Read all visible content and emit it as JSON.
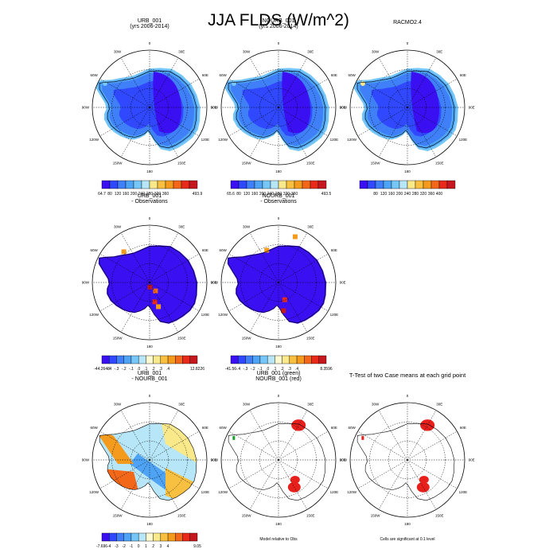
{
  "title": "JJA FLDS (W/m^2)",
  "lon_labels": [
    "0",
    "30E",
    "60E",
    "90E",
    "120E",
    "150E",
    "180",
    "150W",
    "120W",
    "90W",
    "60W",
    "30W"
  ],
  "chart_data": [
    {
      "type": "heatmap",
      "panel": "URB_001",
      "title": [
        "URB_001",
        "(yrs 2006-2014)"
      ],
      "colorbar": {
        "min_label": "64.7",
        "max_label": "493.9",
        "labels": [
          "80",
          "120",
          "160",
          "200",
          "240",
          "280",
          "320",
          "360"
        ]
      }
    },
    {
      "type": "heatmap",
      "panel": "NOURB_001",
      "title": [
        "NOURB_001",
        "(yrs 2006-2014)"
      ],
      "colorbar": {
        "min_label": "65.6",
        "max_label": "493.5",
        "labels": [
          "80",
          "120",
          "160",
          "200",
          "240",
          "280",
          "320",
          "360"
        ]
      }
    },
    {
      "type": "heatmap",
      "panel": "RACMO2.4",
      "title": [
        "RACMO2.4"
      ],
      "colorbar": {
        "min_label": "",
        "max_label": "",
        "labels": [
          "80",
          "120",
          "160",
          "200",
          "240",
          "280",
          "320",
          "360",
          "400"
        ]
      }
    },
    {
      "type": "heatmap",
      "panel": "URB_001 - Observations",
      "title": [
        "URB_001",
        "- Observations"
      ],
      "colorbar": {
        "min_label": "-44.2648",
        "max_label": "12.8226",
        "labels": [
          "-.4",
          "-.3",
          "-.2",
          "-.1",
          ".0",
          ".1",
          ".2",
          ".3",
          ".4"
        ]
      }
    },
    {
      "type": "heatmap",
      "panel": "NOURB_001 - Observations",
      "title": [
        "NOURB_001",
        "- Observations"
      ],
      "colorbar": {
        "min_label": "-41.56",
        "max_label": "8.3596",
        "labels": [
          "-.4",
          "-.3",
          "-.2",
          "-.1",
          ".0",
          ".1",
          ".2",
          ".3",
          ".4"
        ]
      }
    },
    {
      "type": "heatmap",
      "panel": "URB_001 - NOURB_001",
      "title": [
        "URB_001",
        "- NOURB_001"
      ],
      "colorbar": {
        "min_label": "-7.696",
        "max_label": "9.05",
        "labels": [
          "-4",
          "-3",
          "-2",
          "-1",
          "0",
          "1",
          "2",
          "3",
          "4"
        ]
      }
    },
    {
      "type": "heatmap",
      "panel": "Model relative to Obs",
      "title": [
        "URB_001 (green)",
        "NOURB_001 (red)"
      ],
      "footnote": "Model relative to Obs"
    },
    {
      "type": "heatmap",
      "panel": "T-Test",
      "title": [
        "T-Test of two Case means at each grid point"
      ],
      "footnote": "Cells are significant at 0.1 level"
    }
  ],
  "colors": {
    "full_field": [
      "#3a10f2",
      "#3048ff",
      "#3f7ff7",
      "#4fa3f5",
      "#76c7f7",
      "#b6e6f7",
      "#f9e98a",
      "#f7c040",
      "#f49a1c",
      "#f26818",
      "#e82a1a",
      "#c5171e"
    ],
    "difference": [
      "#3a10f2",
      "#3048ff",
      "#3f7ff7",
      "#4fa3f5",
      "#76c7f7",
      "#b6e6f7",
      "#fdfad2",
      "#f9e98a",
      "#f7c040",
      "#f49a1c",
      "#f26818",
      "#e82a1a",
      "#c5171e"
    ],
    "significant": "#e8201c",
    "urb_marker": "#1aa02a"
  }
}
